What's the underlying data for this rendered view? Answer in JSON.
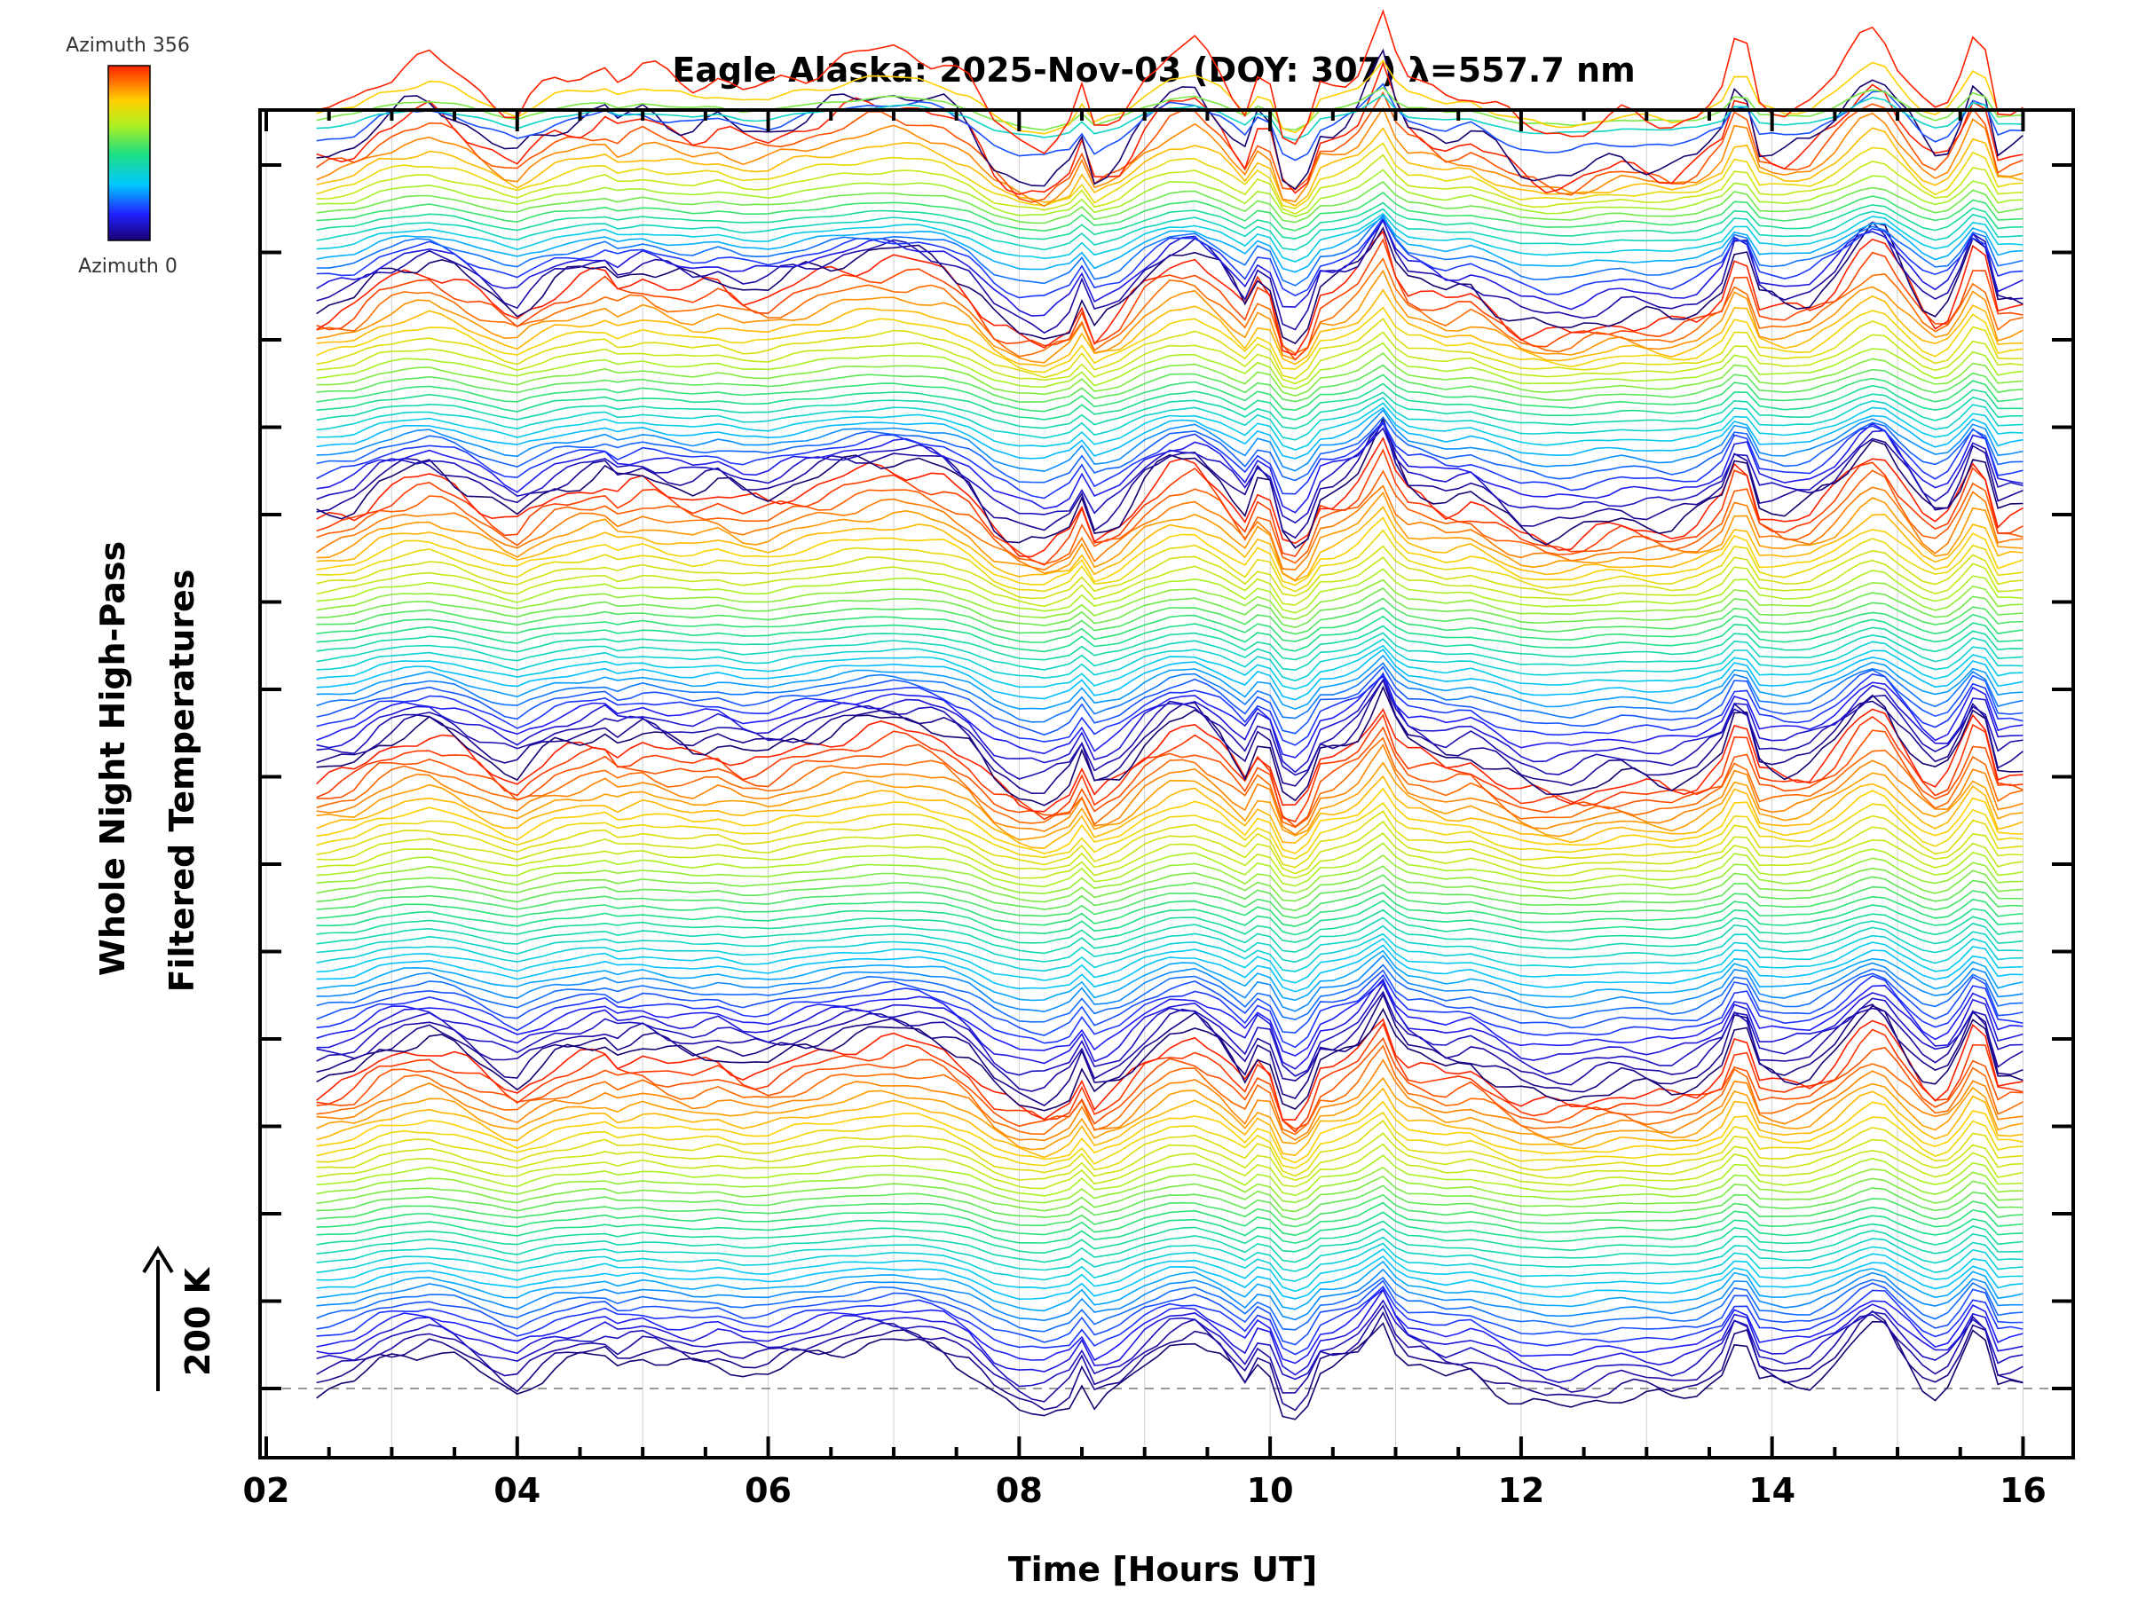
{
  "chart_data": {
    "type": "line",
    "title": "Eagle Alaska: 2025-Nov-03 (DOY: 307) λ=557.7 nm",
    "xlabel": "Time [Hours UT]",
    "ylabel_line1": "Whole Night High-Pass",
    "ylabel_line2": "Filtered Temperatures",
    "scale_label": "200 K",
    "colorbar": {
      "top_label": "Azimuth 356",
      "bottom_label": "Azimuth 0",
      "colormap": "rainbow"
    },
    "xlim": [
      2,
      16.4
    ],
    "x_ticks": [
      "02",
      "04",
      "06",
      "08",
      "10",
      "12",
      "14",
      "16"
    ],
    "x_tick_values": [
      2,
      4,
      6,
      8,
      10,
      12,
      14,
      16
    ],
    "x_range_of_data": [
      2.4,
      16.05
    ],
    "num_traces": 150,
    "ring_sizes": [
      36,
      36,
      30,
      24,
      18,
      6
    ],
    "trace_offset_K": 19.4,
    "amplitude_K": 55,
    "baseline_dashed": true,
    "colors": {
      "background": "#ffffff",
      "axis": "#000000",
      "grid": "#d0d0d0",
      "dash": "#999999"
    },
    "profile": {
      "t": [
        2.4,
        2.7,
        2.9,
        3.1,
        3.3,
        3.5,
        3.7,
        3.9,
        4.0,
        4.1,
        4.3,
        4.5,
        4.7,
        4.8,
        5.0,
        5.2,
        5.4,
        5.6,
        5.8,
        6.0,
        6.2,
        6.4,
        6.6,
        6.8,
        7.0,
        7.2,
        7.4,
        7.6,
        7.8,
        8.0,
        8.2,
        8.4,
        8.5,
        8.6,
        8.8,
        9.0,
        9.2,
        9.4,
        9.6,
        9.8,
        9.95,
        10.1,
        10.25,
        10.4,
        10.55,
        10.7,
        10.9,
        11.05,
        11.2,
        11.4,
        11.6,
        11.8,
        12.0,
        12.2,
        12.4,
        12.6,
        12.8,
        13.0,
        13.2,
        13.4,
        13.6,
        13.75,
        13.9,
        14.1,
        14.3,
        14.5,
        14.7,
        14.85,
        15.0,
        15.2,
        15.35,
        15.5,
        15.65,
        15.8,
        15.95,
        16.05
      ],
      "v": [
        -0.3,
        -0.1,
        0.3,
        0.5,
        0.6,
        0.4,
        0.1,
        -0.2,
        -0.3,
        -0.1,
        0.2,
        0.35,
        0.5,
        0.3,
        0.45,
        0.3,
        0.2,
        0.3,
        0.1,
        0.1,
        0.3,
        0.45,
        0.6,
        0.7,
        0.75,
        0.7,
        0.55,
        0.2,
        -0.4,
        -0.7,
        -0.8,
        -0.5,
        0.0,
        -0.6,
        -0.3,
        0.3,
        0.7,
        0.8,
        0.4,
        -0.2,
        0.6,
        -0.7,
        -0.9,
        0.1,
        0.2,
        0.5,
        1.3,
        0.3,
        0.2,
        0.0,
        0.1,
        -0.2,
        -0.5,
        -0.6,
        -0.6,
        -0.45,
        -0.35,
        -0.4,
        -0.45,
        -0.3,
        0.1,
        1.1,
        -0.1,
        -0.2,
        -0.1,
        0.3,
        0.9,
        1.2,
        0.6,
        -0.1,
        -0.4,
        0.3,
        1.2,
        -0.2,
        -0.1,
        -0.1
      ]
    }
  }
}
